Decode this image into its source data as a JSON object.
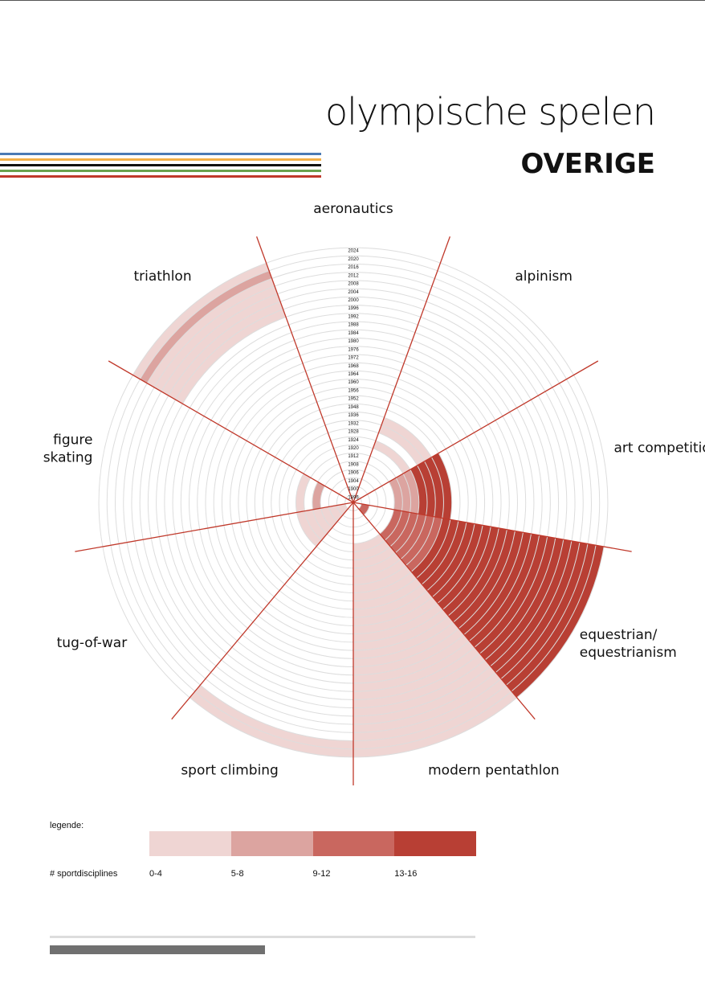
{
  "header": {
    "title": "olympische spelen",
    "subtitle": "OVERIGE"
  },
  "stripes": [
    "#4a7ab5",
    "#f2b04a",
    "#111111",
    "#6aa24e",
    "#c0392b"
  ],
  "chart_data": {
    "type": "radial",
    "years": [
      "1896",
      "1900",
      "1904",
      "1906",
      "1908",
      "1912",
      "1920",
      "1924",
      "1928",
      "1932",
      "1936",
      "1948",
      "1952",
      "1956",
      "1960",
      "1964",
      "1968",
      "1972",
      "1976",
      "1980",
      "1984",
      "1988",
      "1992",
      "1996",
      "2000",
      "2004",
      "2008",
      "2012",
      "2016",
      "2020",
      "2024"
    ],
    "sectors": [
      {
        "name": "aeronautics",
        "values": {}
      },
      {
        "name": "alpinism",
        "values": {
          "1924": 1,
          "1932": 1,
          "1936": 1
        }
      },
      {
        "name": "art competitions",
        "values": {
          "1912": 5,
          "1920": 5,
          "1924": 5,
          "1928": 13,
          "1932": 13,
          "1936": 13,
          "1948": 13
        }
      },
      {
        "name": "equestrian/\nequestrianism",
        "values": {
          "1900": 9,
          "1912": 9,
          "1920": 9,
          "1924": 9,
          "1928": 9,
          "1932": 9,
          "1936": 9,
          "1948": 13,
          "1952": 13,
          "1956": 13,
          "1960": 13,
          "1964": 13,
          "1968": 13,
          "1972": 13,
          "1976": 13,
          "1980": 13,
          "1984": 13,
          "1988": 13,
          "1992": 13,
          "1996": 13,
          "2000": 13,
          "2004": 13,
          "2008": 13,
          "2012": 13,
          "2016": 13,
          "2020": 13,
          "2024": 13
        }
      },
      {
        "name": "modern pentathlon",
        "values": {
          "1912": 1,
          "1920": 1,
          "1924": 1,
          "1928": 1,
          "1932": 1,
          "1936": 1,
          "1948": 1,
          "1952": 1,
          "1956": 1,
          "1960": 1,
          "1964": 1,
          "1968": 1,
          "1972": 1,
          "1976": 1,
          "1980": 1,
          "1984": 1,
          "1988": 1,
          "1992": 1,
          "1996": 1,
          "2000": 1,
          "2004": 1,
          "2008": 1,
          "2012": 1,
          "2016": 1,
          "2020": 1,
          "2024": 1
        }
      },
      {
        "name": "sport climbing",
        "values": {
          "2020": 1,
          "2024": 1
        }
      },
      {
        "name": "tug-of-war",
        "values": {
          "1900": 1,
          "1904": 1,
          "1906": 1,
          "1908": 1,
          "1912": 1,
          "1920": 1
        }
      },
      {
        "name": "figure\nskating",
        "values": {
          "1908": 5,
          "1920": 1
        }
      },
      {
        "name": "triathlon",
        "values": {
          "2000": 1,
          "2004": 1,
          "2008": 1,
          "2012": 1,
          "2016": 1,
          "2020": 5,
          "2024": 1
        }
      }
    ],
    "legend": {
      "title": "legende:",
      "unit": "# sportdisciplines",
      "bins": [
        {
          "label": "0-4",
          "color": "#efd5d3"
        },
        {
          "label": "5-8",
          "color": "#dca4a0"
        },
        {
          "label": "9-12",
          "color": "#c9675f"
        },
        {
          "label": "13-16",
          "color": "#b83f34"
        }
      ]
    },
    "colors": {
      "divider": "#c0392b",
      "ring": "#dddddd"
    }
  }
}
